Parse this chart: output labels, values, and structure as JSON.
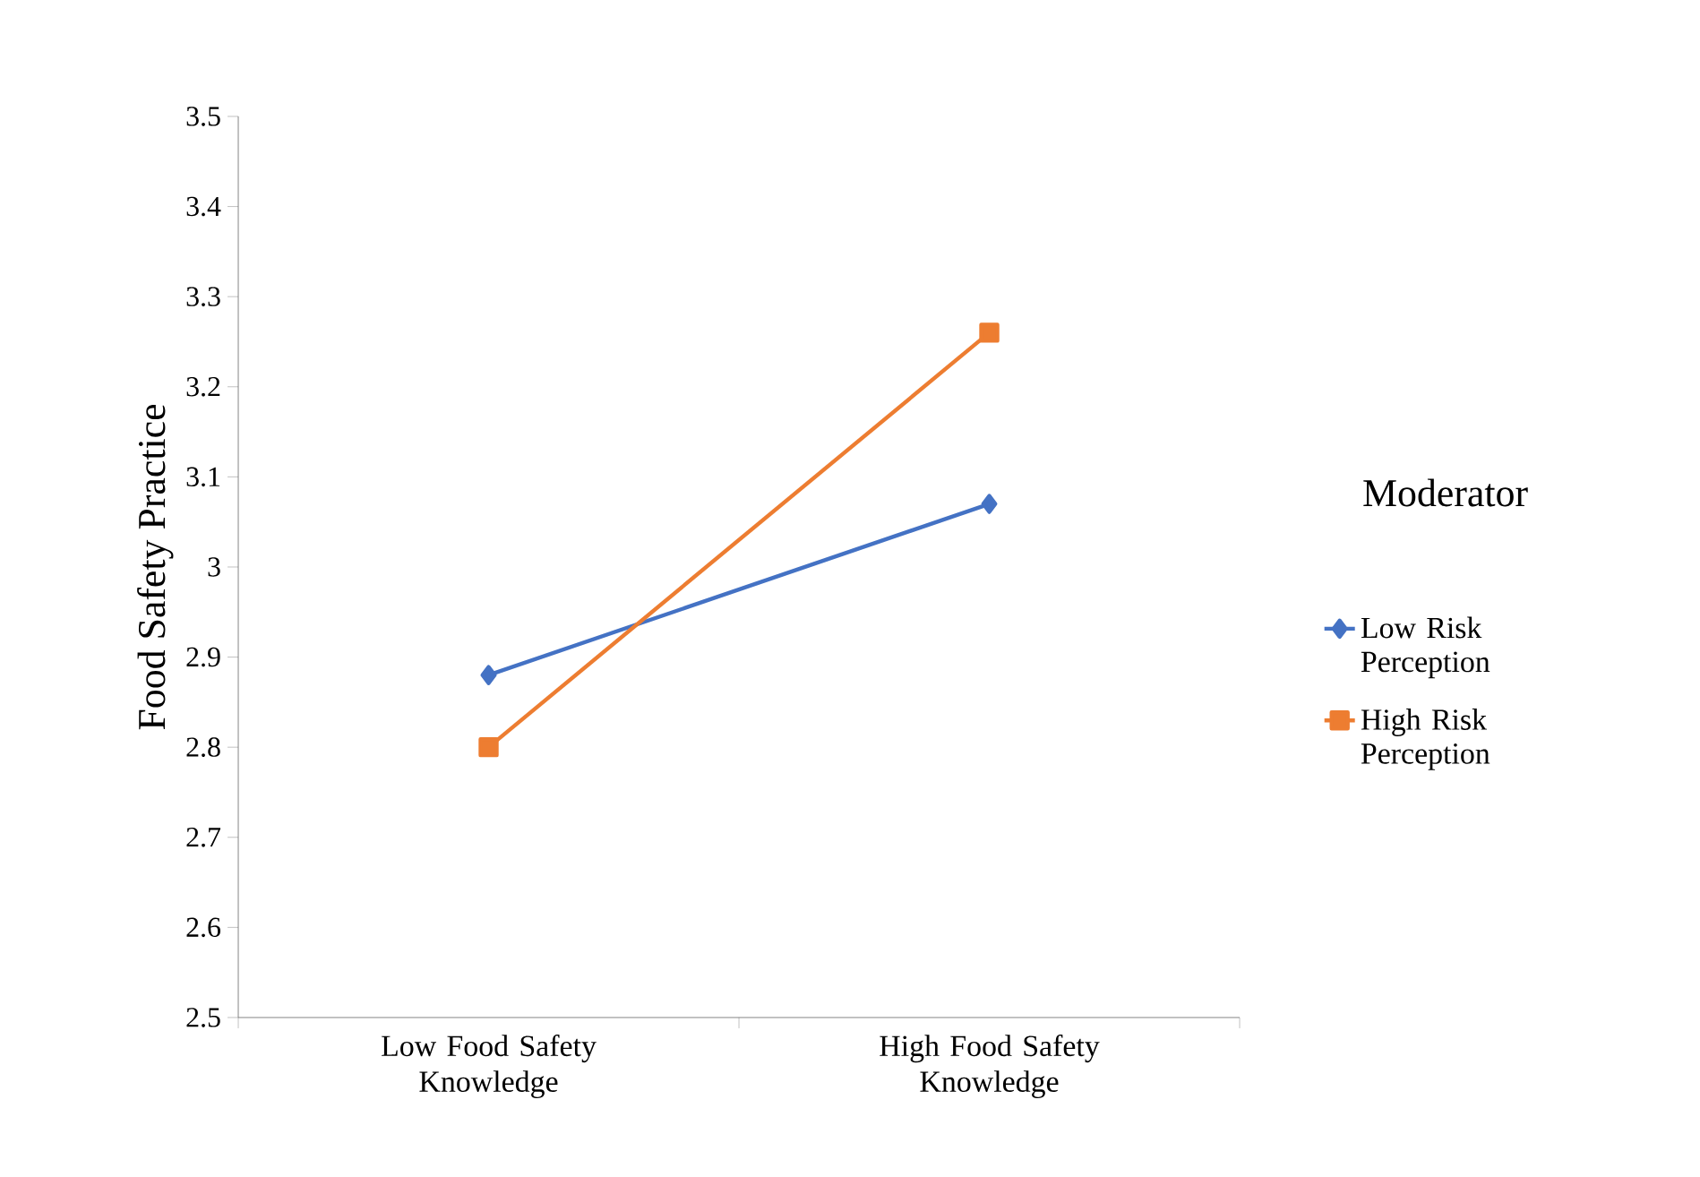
{
  "chart_data": {
    "type": "line",
    "ylabel": "Food Safety Practice",
    "legend_title": "Moderator",
    "legend": "right",
    "categories": [
      "Low Food Safety Knowledge",
      "High Food Safety Knowledge"
    ],
    "series": [
      {
        "name": "Low Risk Perception",
        "color": "#4472c4",
        "marker": "diamond",
        "values": [
          2.88,
          3.07
        ]
      },
      {
        "name": "High Risk Perception",
        "color": "#ed7d31",
        "marker": "square",
        "values": [
          2.8,
          3.26
        ]
      }
    ],
    "ylim": [
      2.5,
      3.5
    ],
    "yticks": [
      2.5,
      2.6,
      2.7,
      2.8,
      2.9,
      3,
      3.1,
      3.2,
      3.3,
      3.4,
      3.5
    ],
    "grid": false,
    "line_style": "solid"
  }
}
